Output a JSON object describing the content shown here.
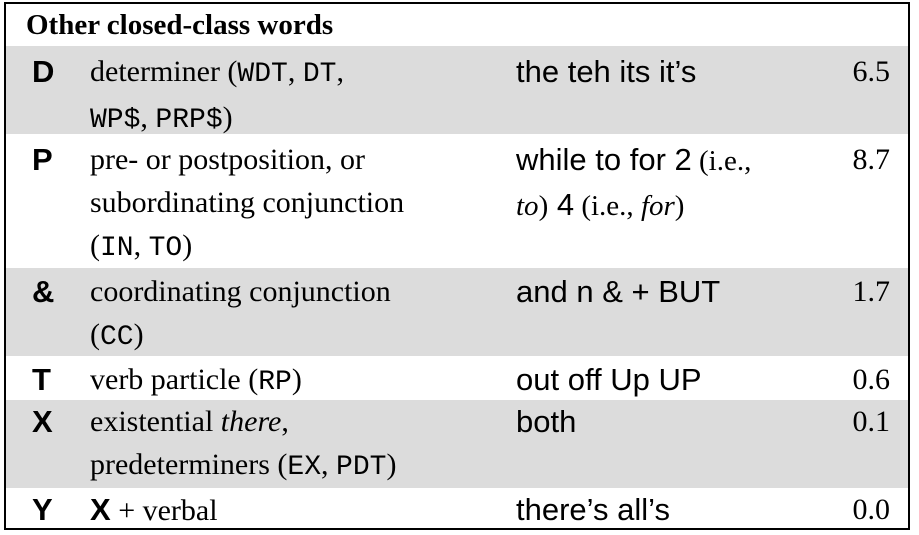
{
  "header": {
    "title": "Other closed-class words"
  },
  "rows": [
    {
      "tag": "D",
      "desc": {
        "text1": "determiner (",
        "c1": "WDT",
        "sep1": ", ",
        "c2": "DT",
        "sep2": ",",
        "c3": "WP$",
        "sep3": ", ",
        "c4": "PRP$",
        "end": ")"
      },
      "examples": "the teh its it’s",
      "value": "6.5"
    },
    {
      "tag": "P",
      "desc": {
        "line1": "pre- or postposition, or",
        "line2": "subordinating conjunction",
        "open": "(",
        "c1": "IN",
        "sep1": ", ",
        "c2": "TO",
        "end": ")"
      },
      "examples": {
        "a": "while to for 2",
        "b": " (i.e.,",
        "c": "to",
        "d": ")",
        "e": " 4",
        "f": " (i.e., ",
        "g": "for",
        "h": ")"
      },
      "value": "8.7"
    },
    {
      "tag": "&",
      "desc": {
        "line1": "coordinating conjunction",
        "open": "(",
        "c1": "CC",
        "end": ")"
      },
      "examples": "and n & + BUT",
      "value": "1.7"
    },
    {
      "tag": "T",
      "desc": {
        "text1": "verb particle (",
        "c1": "RP",
        "end": ")"
      },
      "examples": "out off Up UP",
      "value": "0.6"
    },
    {
      "tag": "X",
      "desc": {
        "text1": "existential ",
        "em": "there",
        "text2": ",",
        "line2": "predeterminers (",
        "c1": "EX",
        "sep1": ", ",
        "c2": "PDT",
        "end": ")"
      },
      "examples": "both",
      "value": "0.1"
    },
    {
      "tag": "Y",
      "desc": {
        "bold": "X",
        "text1": " + verbal"
      },
      "examples": "there’s all’s",
      "value": "0.0"
    }
  ]
}
